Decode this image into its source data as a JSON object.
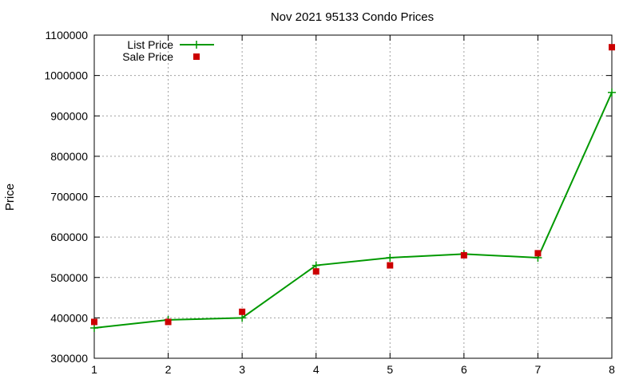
{
  "chart_data": {
    "type": "line",
    "title": "Nov 2021 95133 Condo Prices",
    "xlabel": "",
    "ylabel": "Price",
    "xlim": [
      1,
      8
    ],
    "ylim": [
      300000,
      1100000
    ],
    "x_ticks": [
      "1",
      "2",
      "3",
      "4",
      "5",
      "6",
      "7",
      "8"
    ],
    "y_ticks": [
      "300000",
      "400000",
      "500000",
      "600000",
      "700000",
      "800000",
      "900000",
      "1000000",
      "1100000"
    ],
    "grid": true,
    "legend_position": "top-left",
    "series": [
      {
        "name": "List Price",
        "style": "line-with-plus-markers",
        "color": "#009900",
        "x": [
          1,
          2,
          3,
          4,
          5,
          6,
          7,
          8
        ],
        "values": [
          375000,
          395000,
          400000,
          530000,
          549000,
          558000,
          549000,
          958000
        ]
      },
      {
        "name": "Sale Price",
        "style": "square-markers",
        "color": "#cc0000",
        "x": [
          1,
          2,
          3,
          4,
          5,
          6,
          7,
          8
        ],
        "values": [
          390000,
          390000,
          415000,
          515000,
          530000,
          555000,
          560000,
          1070000
        ]
      }
    ]
  }
}
